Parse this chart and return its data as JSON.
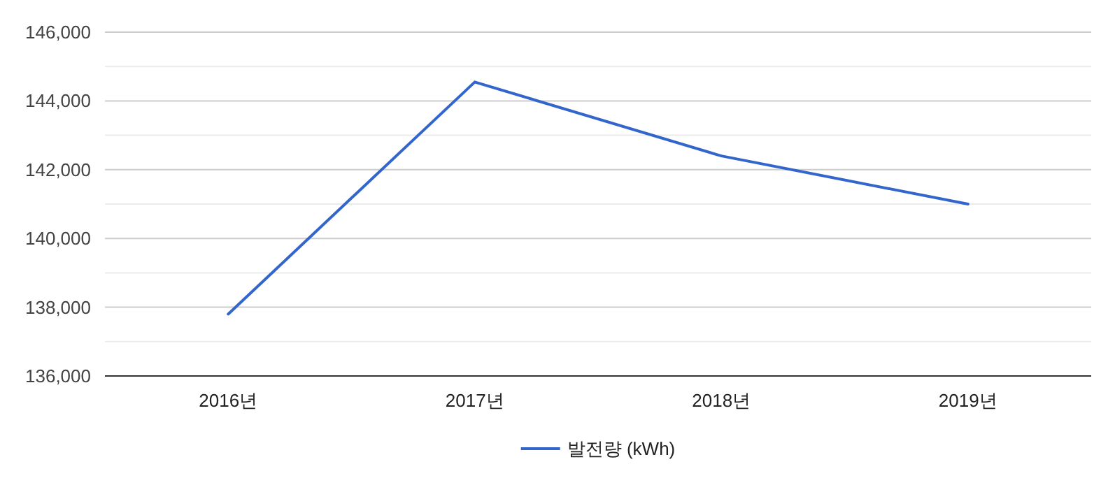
{
  "chart_data": {
    "type": "line",
    "categories": [
      "2016년",
      "2017년",
      "2018년",
      "2019년"
    ],
    "series": [
      {
        "name": "발전량 (kWh)",
        "color": "#3366cc",
        "values": [
          137800,
          144550,
          142400,
          141000
        ]
      }
    ],
    "ylim": [
      136000,
      146000
    ],
    "yticks": [
      {
        "value": 136000,
        "label": "136,000"
      },
      {
        "value": 137000,
        "label": null
      },
      {
        "value": 138000,
        "label": "138,000"
      },
      {
        "value": 139000,
        "label": null
      },
      {
        "value": 140000,
        "label": "140,000"
      },
      {
        "value": 141000,
        "label": null
      },
      {
        "value": 142000,
        "label": "142,000"
      },
      {
        "value": 143000,
        "label": null
      },
      {
        "value": 144000,
        "label": "144,000"
      },
      {
        "value": 145000,
        "label": null
      },
      {
        "value": 146000,
        "label": "146,000"
      }
    ],
    "grid": "y",
    "legend": "bottom",
    "marker": "none",
    "line_style": "solid"
  }
}
